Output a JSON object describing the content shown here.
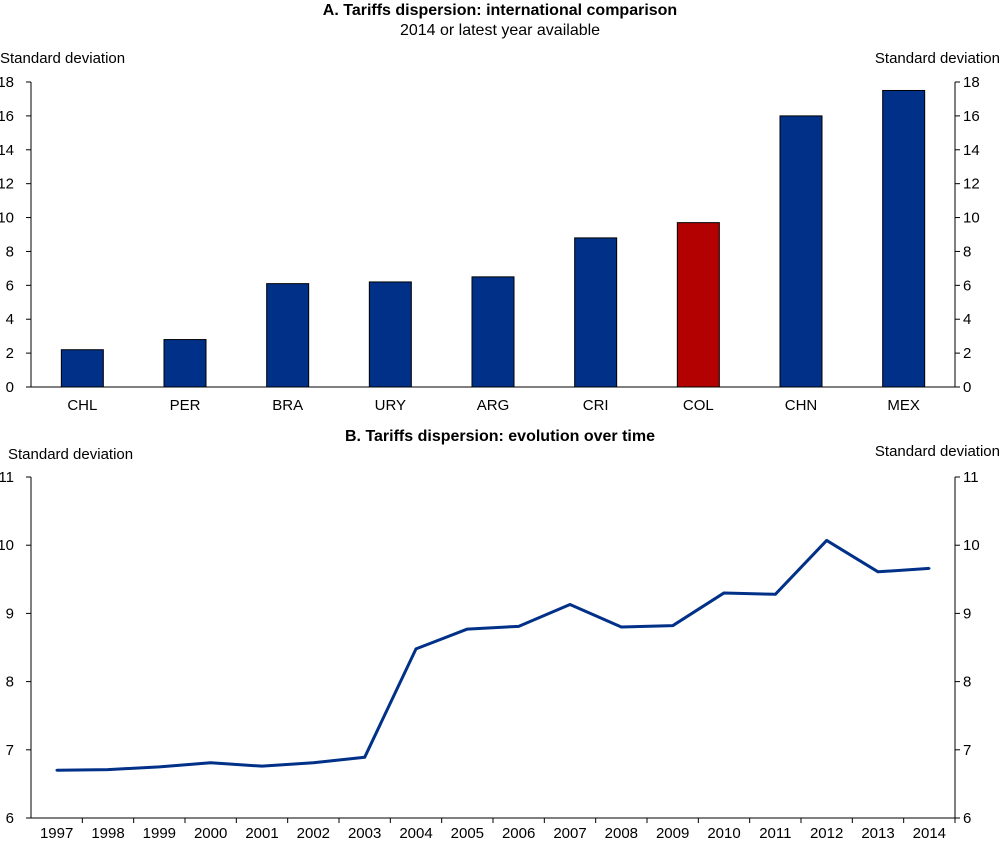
{
  "chart_data": [
    {
      "type": "bar",
      "title": "A. Tariffs dispersion: international comparison",
      "subtitle": "2014 or latest year available",
      "ylabel_left": "Standard deviation",
      "ylabel_right": "Standard deviation",
      "ylim": [
        0,
        18
      ],
      "yticks": [
        0,
        2,
        4,
        6,
        8,
        10,
        12,
        14,
        16,
        18
      ],
      "categories": [
        "CHL",
        "PER",
        "BRA",
        "URY",
        "ARG",
        "CRI",
        "COL",
        "CHN",
        "MEX"
      ],
      "values": [
        2.2,
        2.8,
        6.1,
        6.2,
        6.5,
        8.8,
        9.7,
        16.0,
        17.5
      ],
      "highlight_category": "COL",
      "colors": {
        "default": "#003087",
        "highlight": "#b30000"
      },
      "grid": false
    },
    {
      "type": "line",
      "title": "B. Tariffs dispersion: evolution over time",
      "ylabel_left": "Standard deviation",
      "ylabel_right": "Standard deviation",
      "ylim": [
        6,
        11
      ],
      "yticks": [
        6,
        7,
        8,
        9,
        10,
        11
      ],
      "x": [
        "1997",
        "1998",
        "1999",
        "2000",
        "2001",
        "2002",
        "2003",
        "2004",
        "2005",
        "2006",
        "2007",
        "2008",
        "2009",
        "2010",
        "2011",
        "2012",
        "2013",
        "2014"
      ],
      "values": [
        6.7,
        6.71,
        6.75,
        6.81,
        6.76,
        6.81,
        6.89,
        8.48,
        8.77,
        8.81,
        9.13,
        8.8,
        8.82,
        9.3,
        9.28,
        10.07,
        9.61,
        9.66
      ],
      "colors": {
        "line": "#003087"
      },
      "grid": false
    }
  ]
}
